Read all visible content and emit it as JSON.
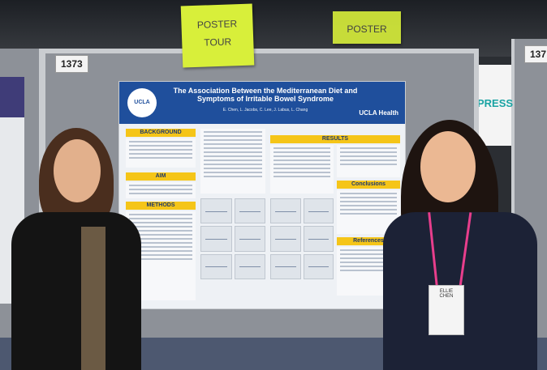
{
  "booth_left": "1373",
  "booth_right": "137",
  "sign_main": {
    "line1": "POSTER",
    "line2": "TOUR"
  },
  "sign_small": "POSTER",
  "poster": {
    "title": "The Association Between the Mediterranean Diet and Symptoms of Irritable Bowel Syndrome",
    "authors": "E. Chen, L. Jacobs, C. Lee, J. Labus, L. Chang",
    "logo": "UCLA",
    "brand": "UCLA Health",
    "sections": {
      "background": "BACKGROUND",
      "aim": "AIM",
      "methods": "METHODS",
      "results": "RESULTS",
      "conclusions": "Conclusions",
      "references": "References"
    }
  },
  "right_sign_text": "PRESS",
  "badge": {
    "line1": "ELLIE",
    "line2": "CHEN"
  },
  "colors": {
    "poster_header": "#1f4f9c",
    "section_label": "#f5c518",
    "sign": "#d8ef3a"
  }
}
